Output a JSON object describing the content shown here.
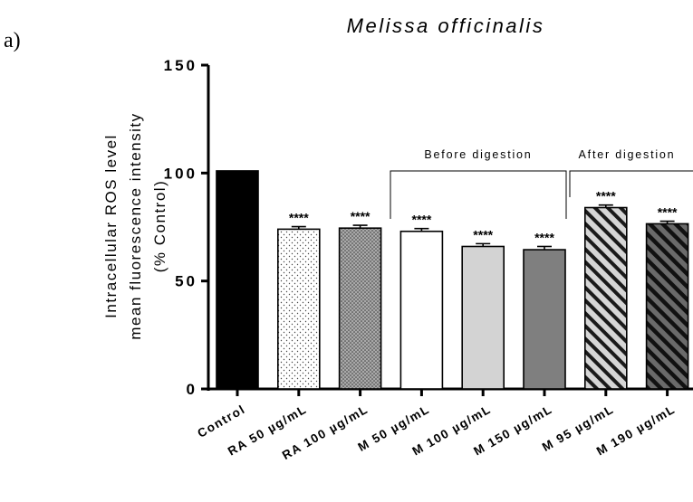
{
  "panel_label": "a)",
  "chart_data": {
    "type": "bar",
    "title": "Melissa officinalis",
    "ylabel_lines": [
      "Intracellular ROS level",
      "mean fluorescence intensity",
      "(%  Control)"
    ],
    "xlabel": "",
    "ylim": [
      0,
      150
    ],
    "yticks": [
      "0",
      "50",
      "100",
      "150"
    ],
    "grid": false,
    "categories": [
      "Control",
      "RA 50 µg/mL",
      "RA 100 µg/mL",
      "M 50 µg/mL",
      "M 100 µg/mL",
      "M 150 µg/mL",
      "M 95 µg/mL",
      "M 190 µg/mL"
    ],
    "values": [
      101,
      74,
      74.5,
      73,
      66,
      64.5,
      84,
      76.5
    ],
    "errors": [
      0,
      1.2,
      1.3,
      1.3,
      1.3,
      1.5,
      1.2,
      1.2
    ],
    "significance": [
      "",
      "****",
      "****",
      "****",
      "****",
      "****",
      "****",
      "****"
    ],
    "bar_fills": [
      "solid-black",
      "dots-sparse-white",
      "dots-dense-gray",
      "solid-white",
      "solid-light-gray",
      "solid-dark-gray",
      "stripes-light-gray",
      "stripes-dark-gray"
    ],
    "bar_colors": [
      "#000000",
      "#ffffff",
      "#a9a9a9",
      "#ffffff",
      "#d3d3d3",
      "#7f7f7f",
      "#cfcfcf",
      "#5e5e5e"
    ],
    "groups": [
      {
        "label": "Before digestion",
        "from": 3,
        "to": 5
      },
      {
        "label": "After digestion",
        "from": 6,
        "to": 7
      }
    ]
  }
}
